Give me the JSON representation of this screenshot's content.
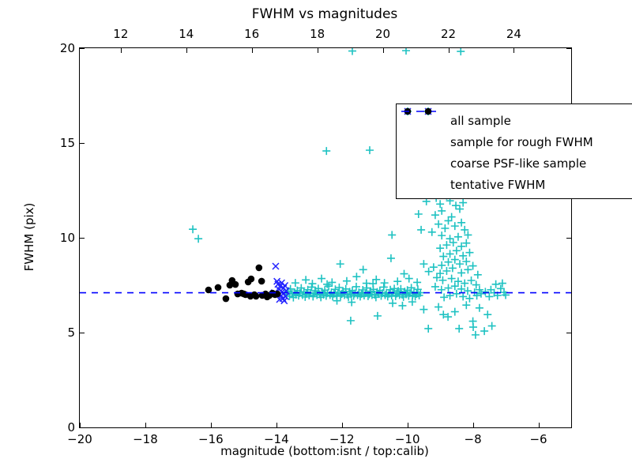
{
  "chart_data": {
    "type": "scatter",
    "title": "FWHM vs magnitudes",
    "xlabel": "magnitude (bottom:isnt / top:calib)",
    "ylabel": "FWHM (pix)",
    "xlim": [
      -20,
      -5
    ],
    "ylim": [
      0,
      20
    ],
    "x_ticks_bottom": [
      -20,
      -18,
      -16,
      -14,
      -12,
      -10,
      -8,
      -6
    ],
    "x_ticks_top": [
      12,
      14,
      16,
      18,
      20,
      22,
      24
    ],
    "top_axis_offset": 30.75,
    "y_ticks": [
      0,
      5,
      10,
      15,
      20
    ],
    "grid": false,
    "legend_position": "upper right",
    "tentative_fwhm": 7.1,
    "series": [
      {
        "name": "all sample",
        "marker": "plus",
        "color": "#1fc2c2",
        "points": [
          [
            -16.55,
            10.45
          ],
          [
            -16.38,
            9.95
          ],
          [
            -13.68,
            7.02
          ],
          [
            -13.64,
            7.18
          ],
          [
            -13.6,
            6.92
          ],
          [
            -13.57,
            7.3
          ],
          [
            -13.52,
            7.05
          ],
          [
            -13.48,
            6.85
          ],
          [
            -13.44,
            7.12
          ],
          [
            -13.4,
            7.0
          ],
          [
            -13.36,
            7.22
          ],
          [
            -13.32,
            6.95
          ],
          [
            -13.28,
            7.08
          ],
          [
            -13.24,
            7.35
          ],
          [
            -13.2,
            6.98
          ],
          [
            -13.16,
            7.15
          ],
          [
            -13.12,
            6.88
          ],
          [
            -13.08,
            7.04
          ],
          [
            -13.04,
            7.26
          ],
          [
            -13.0,
            6.96
          ],
          [
            -12.96,
            7.1
          ],
          [
            -12.92,
            7.4
          ],
          [
            -12.88,
            6.9
          ],
          [
            -12.84,
            7.06
          ],
          [
            -12.8,
            7.2
          ],
          [
            -12.76,
            6.98
          ],
          [
            -12.72,
            7.32
          ],
          [
            -12.68,
            7.02
          ],
          [
            -12.64,
            6.86
          ],
          [
            -12.6,
            7.14
          ],
          [
            -12.56,
            7.0
          ],
          [
            -12.52,
            7.24
          ],
          [
            -12.48,
            6.94
          ],
          [
            -12.44,
            7.08
          ],
          [
            -12.4,
            7.45
          ],
          [
            -12.36,
            6.98
          ],
          [
            -12.32,
            7.12
          ],
          [
            -12.28,
            6.9
          ],
          [
            -12.24,
            7.05
          ],
          [
            -12.2,
            7.28
          ],
          [
            -12.16,
            6.96
          ],
          [
            -12.12,
            7.1
          ],
          [
            -12.08,
            7.38
          ],
          [
            -12.04,
            6.92
          ],
          [
            -12.0,
            7.04
          ],
          [
            -11.96,
            7.18
          ],
          [
            -11.92,
            6.98
          ],
          [
            -11.88,
            7.3
          ],
          [
            -11.84,
            7.0
          ],
          [
            -11.8,
            6.88
          ],
          [
            -11.76,
            7.15
          ],
          [
            -11.72,
            7.02
          ],
          [
            -11.68,
            7.22
          ],
          [
            -11.64,
            6.94
          ],
          [
            -11.6,
            7.06
          ],
          [
            -11.56,
            7.42
          ],
          [
            -11.52,
            6.98
          ],
          [
            -11.48,
            7.12
          ],
          [
            -11.44,
            6.9
          ],
          [
            -11.4,
            7.04
          ],
          [
            -11.36,
            7.25
          ],
          [
            -11.32,
            6.96
          ],
          [
            -11.28,
            7.08
          ],
          [
            -11.24,
            7.35
          ],
          [
            -11.2,
            6.92
          ],
          [
            -11.16,
            7.02
          ],
          [
            -11.12,
            7.18
          ],
          [
            -11.08,
            6.98
          ],
          [
            -11.04,
            7.28
          ],
          [
            -11.0,
            7.0
          ],
          [
            -10.96,
            6.86
          ],
          [
            -10.92,
            7.14
          ],
          [
            -10.88,
            7.04
          ],
          [
            -10.84,
            7.22
          ],
          [
            -10.8,
            6.94
          ],
          [
            -10.76,
            7.08
          ],
          [
            -10.72,
            7.4
          ],
          [
            -10.68,
            6.98
          ],
          [
            -10.64,
            7.1
          ],
          [
            -10.6,
            6.9
          ],
          [
            -10.56,
            7.05
          ],
          [
            -10.52,
            7.26
          ],
          [
            -10.48,
            6.96
          ],
          [
            -10.44,
            7.12
          ],
          [
            -10.4,
            7.32
          ],
          [
            -10.36,
            6.92
          ],
          [
            -10.32,
            7.06
          ],
          [
            -10.28,
            7.2
          ],
          [
            -10.24,
            6.98
          ],
          [
            -10.2,
            7.3
          ],
          [
            -10.16,
            7.0
          ],
          [
            -10.12,
            6.88
          ],
          [
            -10.08,
            7.16
          ],
          [
            -10.04,
            7.02
          ],
          [
            -10.0,
            7.24
          ],
          [
            -9.96,
            6.94
          ],
          [
            -9.92,
            7.08
          ],
          [
            -9.88,
            7.36
          ],
          [
            -9.84,
            6.98
          ],
          [
            -9.8,
            7.12
          ],
          [
            -9.76,
            6.9
          ],
          [
            -9.72,
            7.04
          ],
          [
            -9.68,
            7.28
          ],
          [
            -9.64,
            6.96
          ],
          [
            -9.6,
            7.1
          ],
          [
            -13.42,
            7.62
          ],
          [
            -13.1,
            7.78
          ],
          [
            -12.9,
            7.58
          ],
          [
            -12.62,
            7.85
          ],
          [
            -12.45,
            7.55
          ],
          [
            -12.3,
            7.65
          ],
          [
            -12.05,
            8.62
          ],
          [
            -11.85,
            7.72
          ],
          [
            -11.55,
            7.95
          ],
          [
            -11.35,
            8.32
          ],
          [
            -11.25,
            7.6
          ],
          [
            -11.05,
            7.58
          ],
          [
            -10.95,
            7.8
          ],
          [
            -10.7,
            7.62
          ],
          [
            -10.5,
            8.92
          ],
          [
            -10.47,
            10.15
          ],
          [
            -10.3,
            7.7
          ],
          [
            -10.1,
            8.1
          ],
          [
            -9.95,
            7.85
          ],
          [
            -9.7,
            7.65
          ],
          [
            -9.66,
            11.25
          ],
          [
            -9.58,
            10.42
          ],
          [
            -12.15,
            6.68
          ],
          [
            -11.73,
            5.63
          ],
          [
            -11.7,
            6.6
          ],
          [
            -10.91,
            5.88
          ],
          [
            -10.45,
            6.55
          ],
          [
            -10.15,
            6.42
          ],
          [
            -9.85,
            6.62
          ],
          [
            -9.5,
            6.22
          ],
          [
            -9.36,
            5.21
          ],
          [
            -9.05,
            6.35
          ],
          [
            -8.9,
            5.95
          ],
          [
            -8.76,
            5.83
          ],
          [
            -8.55,
            6.1
          ],
          [
            -8.42,
            5.21
          ],
          [
            -8.2,
            6.45
          ],
          [
            -8.0,
            5.6
          ],
          [
            -7.99,
            5.29
          ],
          [
            -7.92,
            4.88
          ],
          [
            -7.8,
            6.3
          ],
          [
            -7.65,
            5.08
          ],
          [
            -7.55,
            5.95
          ],
          [
            -7.42,
            5.35
          ],
          [
            -9.56,
            13.83
          ],
          [
            -9.39,
            14.33
          ],
          [
            -8.42,
            13.83
          ],
          [
            -9.47,
            12.5
          ],
          [
            -9.3,
            12.78
          ],
          [
            -9.2,
            12.42
          ],
          [
            -9.12,
            12.1
          ],
          [
            -9.42,
            11.92
          ],
          [
            -9.0,
            11.78
          ],
          [
            -8.9,
            12.62
          ],
          [
            -8.8,
            12.22
          ],
          [
            -8.7,
            11.95
          ],
          [
            -8.6,
            12.45
          ],
          [
            -8.52,
            11.7
          ],
          [
            -8.95,
            11.42
          ],
          [
            -9.15,
            11.2
          ],
          [
            -8.4,
            11.52
          ],
          [
            -8.3,
            11.85
          ],
          [
            -8.65,
            11.1
          ],
          [
            -8.75,
            10.9
          ],
          [
            -9.05,
            10.72
          ],
          [
            -8.85,
            10.5
          ],
          [
            -8.55,
            10.62
          ],
          [
            -8.35,
            10.8
          ],
          [
            -8.25,
            10.42
          ],
          [
            -9.25,
            10.3
          ],
          [
            -8.95,
            10.12
          ],
          [
            -8.7,
            9.95
          ],
          [
            -8.45,
            10.05
          ],
          [
            -8.15,
            10.15
          ],
          [
            -8.6,
            9.75
          ],
          [
            -8.8,
            9.62
          ],
          [
            -9.0,
            9.45
          ],
          [
            -8.35,
            9.55
          ],
          [
            -8.2,
            9.72
          ],
          [
            -8.5,
            9.32
          ],
          [
            -8.7,
            9.15
          ],
          [
            -8.9,
            9.02
          ],
          [
            -8.3,
            9.05
          ],
          [
            -8.1,
            9.22
          ],
          [
            -8.55,
            8.85
          ],
          [
            -8.75,
            8.72
          ],
          [
            -8.95,
            8.55
          ],
          [
            -8.4,
            8.62
          ],
          [
            -8.2,
            8.75
          ],
          [
            -8.62,
            8.4
          ],
          [
            -8.8,
            8.25
          ],
          [
            -9.0,
            8.12
          ],
          [
            -8.35,
            8.15
          ],
          [
            -8.15,
            8.32
          ],
          [
            -9.2,
            8.45
          ],
          [
            -9.35,
            8.22
          ],
          [
            -9.5,
            8.62
          ],
          [
            -8.0,
            8.52
          ],
          [
            -7.85,
            8.05
          ],
          [
            -9.1,
            7.9
          ],
          [
            -8.92,
            7.76
          ],
          [
            -8.65,
            7.85
          ],
          [
            -8.45,
            7.7
          ],
          [
            -8.25,
            7.6
          ],
          [
            -8.05,
            7.75
          ],
          [
            -7.9,
            7.52
          ],
          [
            -8.55,
            7.45
          ],
          [
            -8.75,
            7.35
          ],
          [
            -8.96,
            7.26
          ],
          [
            -9.15,
            7.42
          ],
          [
            -8.35,
            7.3
          ],
          [
            -8.16,
            7.2
          ],
          [
            -7.95,
            7.12
          ],
          [
            -7.8,
            7.26
          ],
          [
            -8.5,
            7.05
          ],
          [
            -8.7,
            6.95
          ],
          [
            -8.88,
            6.86
          ],
          [
            -8.3,
            6.9
          ],
          [
            -8.1,
            6.8
          ],
          [
            -7.88,
            6.95
          ],
          [
            -7.75,
            7.05
          ],
          [
            -7.62,
            7.15
          ],
          [
            -7.5,
            6.9
          ],
          [
            -7.45,
            7.26
          ],
          [
            -7.35,
            7.1
          ],
          [
            -7.25,
            6.96
          ],
          [
            -7.15,
            7.32
          ],
          [
            -7.05,
            7.12
          ],
          [
            -7.1,
            7.6
          ],
          [
            -7.3,
            7.55
          ],
          [
            -7.0,
            6.98
          ],
          [
            -11.68,
            19.85
          ],
          [
            -10.04,
            19.87
          ],
          [
            -8.37,
            19.83
          ],
          [
            -12.47,
            14.58
          ],
          [
            -11.15,
            14.62
          ]
        ]
      },
      {
        "name": "sample for rough FWHM",
        "marker": "x",
        "color": "#2222ff",
        "points": [
          [
            -14.06,
            7.1
          ],
          [
            -14.02,
            8.5
          ],
          [
            -13.98,
            7.7
          ],
          [
            -13.95,
            7.55
          ],
          [
            -13.92,
            7.28
          ],
          [
            -13.9,
            6.75
          ],
          [
            -13.88,
            7.45
          ],
          [
            -13.85,
            6.95
          ],
          [
            -13.84,
            7.62
          ],
          [
            -13.82,
            7.15
          ],
          [
            -13.8,
            6.8
          ],
          [
            -13.78,
            7.35
          ],
          [
            -13.76,
            6.68
          ],
          [
            -13.74,
            7.48
          ],
          [
            -13.72,
            6.9
          ],
          [
            -13.7,
            7.2
          ]
        ]
      },
      {
        "name": "coarse PSF-like sample",
        "marker": "dot",
        "color": "#000000",
        "points": [
          [
            -16.07,
            7.25
          ],
          [
            -15.78,
            7.38
          ],
          [
            -15.54,
            6.79
          ],
          [
            -15.42,
            7.5
          ],
          [
            -15.35,
            7.75
          ],
          [
            -15.25,
            7.54
          ],
          [
            -15.18,
            7.04
          ],
          [
            -15.06,
            7.08
          ],
          [
            -14.99,
            7.04
          ],
          [
            -14.94,
            7.0
          ],
          [
            -14.86,
            7.67
          ],
          [
            -14.79,
            6.92
          ],
          [
            -14.77,
            7.83
          ],
          [
            -14.67,
            7.0
          ],
          [
            -14.62,
            6.92
          ],
          [
            -14.53,
            8.42
          ],
          [
            -14.45,
            7.71
          ],
          [
            -14.43,
            6.96
          ],
          [
            -14.33,
            7.04
          ],
          [
            -14.28,
            6.88
          ],
          [
            -14.21,
            6.96
          ],
          [
            -14.12,
            7.08
          ],
          [
            -14.04,
            7.0
          ],
          [
            -13.97,
            7.04
          ]
        ]
      },
      {
        "name": "tentative FWHM",
        "marker": "dashed-line",
        "color": "#0000ff",
        "y": 7.1
      }
    ]
  }
}
